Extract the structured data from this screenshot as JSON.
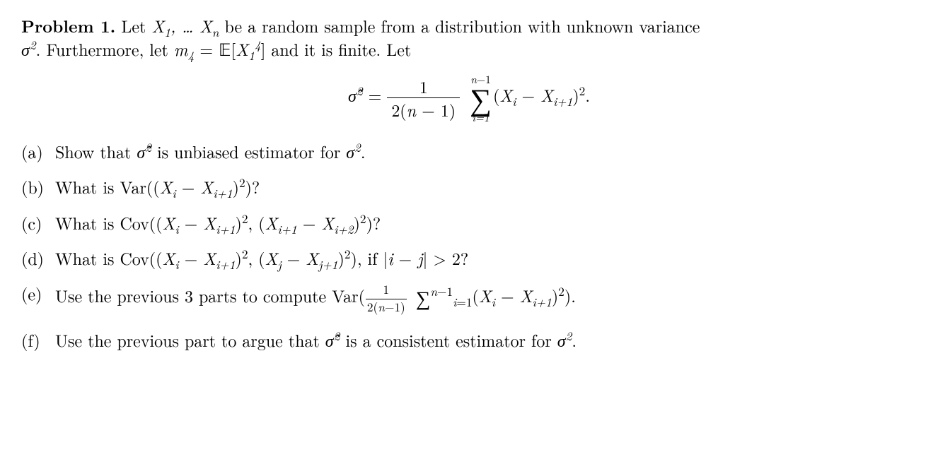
{
  "problem": {
    "label": "Problem 1.",
    "intro_line1_before": "Let ",
    "intro_vars": "X",
    "intro_line1_after": " be a random sample from a distribution with unknown variance",
    "intro_line2_before": ". Furthermore, let ",
    "m4": "m",
    "m4_sub": "4",
    "eq_sym": " = ",
    "expect": "𝔼",
    "X14": "X",
    "X14_sub": "1",
    "X14_sup": "4",
    "intro_line2_after": " and it is finite. Let",
    "sigma_sq": "σ",
    "sigma_sup": "2"
  },
  "display": {
    "lhs_sigma_hat": "σ̂",
    "lhs_sup": "2",
    "eq": " = ",
    "frac_num": "1",
    "frac_den_before": "2(",
    "frac_den_n": "n",
    "frac_den_after": " − 1)",
    "sum_top_before": "",
    "sum_top_n": "n",
    "sum_top_after": "−1",
    "sum_sigma": "∑",
    "sum_bot": "i=1",
    "term_open": "(",
    "term_Xi": "X",
    "term_i": "i",
    "term_minus": " − ",
    "term_Xi1": "X",
    "term_i1": "i+1",
    "term_close": ")",
    "term_sq": "2",
    "period": "."
  },
  "parts": {
    "a": {
      "label": "(a)",
      "before": "Show that ",
      "sigma_hat": "σ̂",
      "sup": "2",
      "middle": " is unbiased estimator for ",
      "sigma": "σ",
      "sup2": "2",
      "period": "."
    },
    "b": {
      "label": "(b)",
      "text_before": "What is Var((",
      "Xi": "X",
      "i": "i",
      "minus": " − ",
      "Xi1": "X",
      "i1": "i+1",
      "text_after1": ")",
      "sq": "2",
      "text_after2": ")?"
    },
    "c": {
      "label": "(c)",
      "before": "What is Cov((",
      "Xi": "X",
      "i": "i",
      "minus": " − ",
      "Xi1": "X",
      "i1": "i+1",
      "mid1": ")",
      "sq": "2",
      "comma": ", (",
      "Xj": "X",
      "j": "i+1",
      "minus2": " − ",
      "Xj1": "X",
      "j1": "i+2",
      "mid2": ")",
      "sq2": "2",
      "after": ")?"
    },
    "d": {
      "label": "(d)",
      "before": "What is Cov((",
      "Xi": "X",
      "i": "i",
      "minus": " − ",
      "Xi1": "X",
      "i1": "i+1",
      "mid1": ")",
      "sq": "2",
      "comma": ", (",
      "Xj": "X",
      "j": "j",
      "minus2": " − ",
      "Xj1": "X",
      "j1": "j+1",
      "mid2": ")",
      "sq2": "2",
      "after_close": "), if |",
      "ij_i": "i",
      "ij_minus": " − ",
      "ij_j": "j",
      "after2": "| > 2?"
    },
    "e": {
      "label": "(e)",
      "before": "Use the previous 3 parts to compute Var(",
      "frac_num": "1",
      "frac_den_before": "2(",
      "frac_den_n": "n",
      "frac_den_after": "−1)",
      "sum": "∑",
      "sum_top_n": "n",
      "sum_top_after": "−1",
      "sum_bot_before": "",
      "sum_bot_i": "i",
      "sum_bot_after": "=1",
      "open": "(",
      "Xi": "X",
      "i": "i",
      "minus": " − ",
      "Xi1": "X",
      "i1": "i+1",
      "close": ")",
      "sq": "2",
      "after": ")."
    },
    "f": {
      "label": "(f)",
      "before": "Use the previous part to argue that ",
      "sigma_hat": "σ̂",
      "sup": "2",
      "middle": " is a consistent estimator for ",
      "sigma": "σ",
      "sup2": "2",
      "period": "."
    }
  }
}
